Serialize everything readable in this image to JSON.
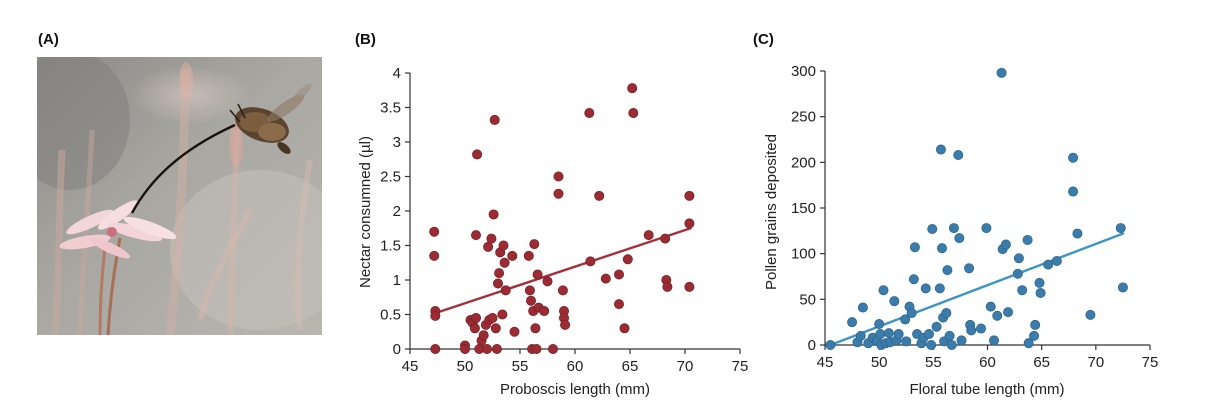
{
  "panels": {
    "a": {
      "label": "(A)"
    },
    "b": {
      "label": "(B)"
    },
    "c": {
      "label": "(C)"
    }
  },
  "photo": {
    "subject": "moth-proboscis-in-flower"
  },
  "colors": {
    "b_points": "#9b2c34",
    "b_points_stroke": "#7a1f26",
    "b_fit": "#a3313b",
    "c_points": "#3c7cab",
    "c_points_stroke": "#2e6690",
    "c_fit": "#3d95c7"
  },
  "chart_data": [
    {
      "id": "b",
      "type": "scatter",
      "title": "",
      "xlabel": "Proboscis length (mm)",
      "ylabel": "Nectar consumned (µl)",
      "xlim": [
        45,
        75
      ],
      "ylim": [
        0,
        4
      ],
      "xticks": [
        45,
        50,
        55,
        60,
        65,
        70,
        75
      ],
      "yticks": [
        0,
        0.5,
        1,
        1.5,
        2,
        2.5,
        3,
        3.5,
        4
      ],
      "fit_line": [
        [
          47.3,
          0.52
        ],
        [
          70.5,
          1.75
        ]
      ],
      "points": [
        [
          47.2,
          1.7
        ],
        [
          47.2,
          1.35
        ],
        [
          47.3,
          0.55
        ],
        [
          47.3,
          0.48
        ],
        [
          47.3,
          0.0
        ],
        [
          50.0,
          0.05
        ],
        [
          50.0,
          0.0
        ],
        [
          50.5,
          0.42
        ],
        [
          50.7,
          0.38
        ],
        [
          50.9,
          0.3
        ],
        [
          51.0,
          0.45
        ],
        [
          51.0,
          1.65
        ],
        [
          51.1,
          2.82
        ],
        [
          51.3,
          0.0
        ],
        [
          51.5,
          0.12
        ],
        [
          51.7,
          0.2
        ],
        [
          51.9,
          0.35
        ],
        [
          52.0,
          0.0
        ],
        [
          52.1,
          1.48
        ],
        [
          52.2,
          0.42
        ],
        [
          52.4,
          1.6
        ],
        [
          52.5,
          0.45
        ],
        [
          52.6,
          1.95
        ],
        [
          52.7,
          3.32
        ],
        [
          52.8,
          0.3
        ],
        [
          52.9,
          0.0
        ],
        [
          53.0,
          0.95
        ],
        [
          53.1,
          1.1
        ],
        [
          53.2,
          1.4
        ],
        [
          53.4,
          0.5
        ],
        [
          53.5,
          1.5
        ],
        [
          53.6,
          1.25
        ],
        [
          53.7,
          0.85
        ],
        [
          54.3,
          1.35
        ],
        [
          54.5,
          0.25
        ],
        [
          55.8,
          1.35
        ],
        [
          55.9,
          0.85
        ],
        [
          56.0,
          0.7
        ],
        [
          56.1,
          0.0
        ],
        [
          56.2,
          0.55
        ],
        [
          56.3,
          1.52
        ],
        [
          56.4,
          0.3
        ],
        [
          56.5,
          0.0
        ],
        [
          56.6,
          1.08
        ],
        [
          56.7,
          0.6
        ],
        [
          57.2,
          0.55
        ],
        [
          57.5,
          0.98
        ],
        [
          58.5,
          2.5
        ],
        [
          58.5,
          2.25
        ],
        [
          58.0,
          0.0
        ],
        [
          58.9,
          0.85
        ],
        [
          59.0,
          0.55
        ],
        [
          59.0,
          0.45
        ],
        [
          59.1,
          0.35
        ],
        [
          61.3,
          3.42
        ],
        [
          61.4,
          1.27
        ],
        [
          62.2,
          2.22
        ],
        [
          62.8,
          1.02
        ],
        [
          64.0,
          1.08
        ],
        [
          64.0,
          0.65
        ],
        [
          64.5,
          0.3
        ],
        [
          64.8,
          1.3
        ],
        [
          65.2,
          3.78
        ],
        [
          65.3,
          3.42
        ],
        [
          66.7,
          1.65
        ],
        [
          68.2,
          1.6
        ],
        [
          68.3,
          1.0
        ],
        [
          68.4,
          0.9
        ],
        [
          70.4,
          2.22
        ],
        [
          70.4,
          1.82
        ],
        [
          70.4,
          0.9
        ]
      ]
    },
    {
      "id": "c",
      "type": "scatter",
      "title": "",
      "xlabel": "Floral tube length (mm)",
      "ylabel": "Pollen grains deposited",
      "xlim": [
        45,
        75
      ],
      "ylim": [
        0,
        300
      ],
      "xticks": [
        45,
        50,
        55,
        60,
        65,
        70,
        75
      ],
      "yticks": [
        0,
        50,
        100,
        150,
        200,
        250,
        300
      ],
      "fit_line": [
        [
          45.5,
          0
        ],
        [
          72.5,
          122
        ]
      ],
      "points": [
        [
          45.5,
          0
        ],
        [
          47.5,
          25
        ],
        [
          48.0,
          3
        ],
        [
          48.3,
          10
        ],
        [
          48.5,
          41
        ],
        [
          49.0,
          2
        ],
        [
          49.4,
          8
        ],
        [
          49.8,
          5
        ],
        [
          50.0,
          23
        ],
        [
          50.1,
          12
        ],
        [
          50.2,
          0
        ],
        [
          50.4,
          60
        ],
        [
          50.6,
          2
        ],
        [
          50.9,
          13
        ],
        [
          51.0,
          3
        ],
        [
          51.4,
          48
        ],
        [
          51.6,
          5
        ],
        [
          51.8,
          12
        ],
        [
          52.4,
          28
        ],
        [
          52.5,
          4
        ],
        [
          52.8,
          42
        ],
        [
          53.0,
          35
        ],
        [
          53.2,
          72
        ],
        [
          53.3,
          107
        ],
        [
          53.5,
          12
        ],
        [
          53.9,
          2
        ],
        [
          54.1,
          8
        ],
        [
          54.3,
          62
        ],
        [
          54.6,
          12
        ],
        [
          54.8,
          0
        ],
        [
          54.9,
          127
        ],
        [
          55.3,
          20
        ],
        [
          55.6,
          62
        ],
        [
          55.7,
          214
        ],
        [
          55.8,
          106
        ],
        [
          55.9,
          30
        ],
        [
          56.0,
          4
        ],
        [
          56.2,
          35
        ],
        [
          56.3,
          82
        ],
        [
          56.5,
          10
        ],
        [
          56.7,
          0
        ],
        [
          56.9,
          128
        ],
        [
          57.3,
          208
        ],
        [
          57.4,
          117
        ],
        [
          57.6,
          5
        ],
        [
          58.3,
          84
        ],
        [
          58.4,
          22
        ],
        [
          58.5,
          16
        ],
        [
          59.4,
          18
        ],
        [
          59.9,
          128
        ],
        [
          60.3,
          42
        ],
        [
          60.6,
          5
        ],
        [
          60.9,
          32
        ],
        [
          61.3,
          298
        ],
        [
          61.4,
          105
        ],
        [
          61.7,
          110
        ],
        [
          61.9,
          36
        ],
        [
          62.8,
          78
        ],
        [
          62.9,
          95
        ],
        [
          63.2,
          60
        ],
        [
          63.7,
          115
        ],
        [
          63.8,
          2
        ],
        [
          64.3,
          10
        ],
        [
          64.4,
          22
        ],
        [
          64.8,
          68
        ],
        [
          64.9,
          57
        ],
        [
          65.6,
          88
        ],
        [
          66.4,
          92
        ],
        [
          67.9,
          205
        ],
        [
          67.9,
          168
        ],
        [
          68.3,
          122
        ],
        [
          69.5,
          33
        ],
        [
          72.3,
          128
        ],
        [
          72.5,
          63
        ]
      ]
    }
  ]
}
